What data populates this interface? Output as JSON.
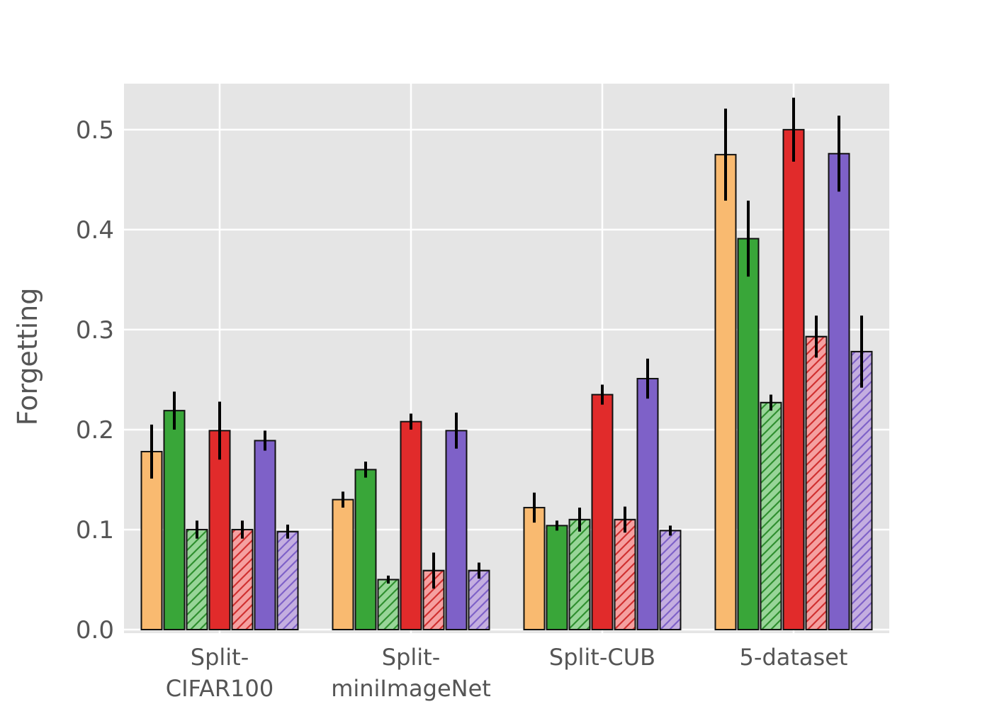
{
  "figure": {
    "background": "#ffffff",
    "plot_background": "#e5e5e5",
    "grid_color": "#ffffff",
    "tick_label_color": "#555555",
    "axis_label_color": "#555555",
    "bar_edge_color": "#111111",
    "error_bar_color": "#000000"
  },
  "chart_data": {
    "type": "bar",
    "title": "",
    "xlabel": "",
    "ylabel": "Forgetting",
    "ylim": [
      0,
      0.546
    ],
    "grid": true,
    "legend": "none",
    "yticks": [
      "0.0",
      "0.1",
      "0.2",
      "0.3",
      "0.4",
      "0.5"
    ],
    "ytick_values": [
      0.0,
      0.1,
      0.2,
      0.3,
      0.4,
      0.5
    ],
    "categories": [
      "Split-CIFAR100",
      "Split-miniImageNet",
      "Split-CUB",
      "5-dataset"
    ],
    "category_lines": [
      [
        "Split-",
        "CIFAR100"
      ],
      [
        "Split-",
        "miniImageNet"
      ],
      [
        "Split-CUB"
      ],
      [
        "5-dataset"
      ]
    ],
    "series": [
      {
        "name": "orange-solid",
        "fill": "#F9BA70",
        "hatch": null,
        "values": [
          0.178,
          0.13,
          0.122,
          0.475
        ],
        "errors": [
          0.027,
          0.008,
          0.015,
          0.046
        ]
      },
      {
        "name": "green-solid",
        "fill": "#39A639",
        "hatch": null,
        "values": [
          0.219,
          0.16,
          0.104,
          0.391
        ],
        "errors": [
          0.019,
          0.008,
          0.005,
          0.038
        ]
      },
      {
        "name": "green-hatched",
        "fill": "#98D598",
        "hatch": "#2F8F2F",
        "values": [
          0.1,
          0.05,
          0.11,
          0.227
        ],
        "errors": [
          0.009,
          0.004,
          0.012,
          0.008
        ]
      },
      {
        "name": "red-solid",
        "fill": "#E12B2B",
        "hatch": null,
        "values": [
          0.199,
          0.208,
          0.235,
          0.5
        ],
        "errors": [
          0.029,
          0.008,
          0.01,
          0.032
        ]
      },
      {
        "name": "red-hatched",
        "fill": "#F5A0A0",
        "hatch": "#D03030",
        "values": [
          0.1,
          0.059,
          0.11,
          0.293
        ],
        "errors": [
          0.009,
          0.018,
          0.013,
          0.021
        ]
      },
      {
        "name": "purple-solid",
        "fill": "#7E61C8",
        "hatch": null,
        "values": [
          0.189,
          0.199,
          0.251,
          0.476
        ],
        "errors": [
          0.01,
          0.018,
          0.02,
          0.038
        ]
      },
      {
        "name": "purple-hatched",
        "fill": "#C4AEE0",
        "hatch": "#7E61C8",
        "values": [
          0.098,
          0.059,
          0.099,
          0.278
        ],
        "errors": [
          0.007,
          0.008,
          0.005,
          0.036
        ]
      }
    ]
  }
}
